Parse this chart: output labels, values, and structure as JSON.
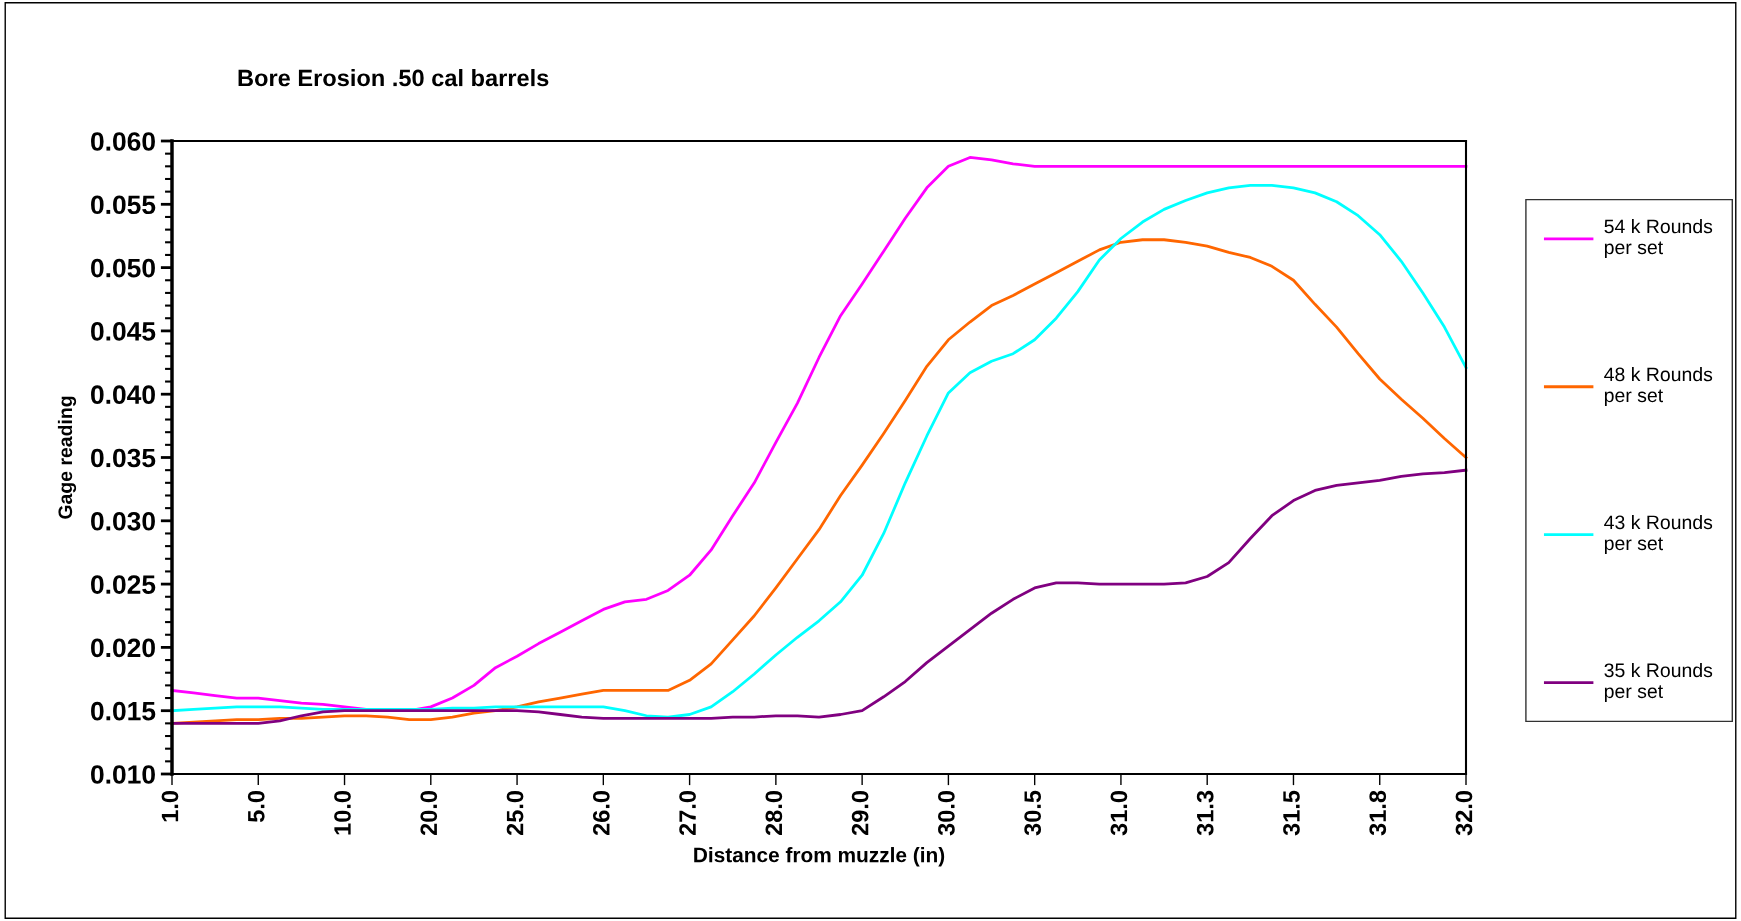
{
  "chart_data": {
    "type": "line",
    "title": "Bore Erosion .50 cal barrels",
    "xlabel": "Distance from muzzle (in)",
    "ylabel": "Gage reading",
    "categories": [
      "1.0",
      null,
      null,
      null,
      "5.0",
      null,
      null,
      null,
      "10.0",
      null,
      null,
      null,
      "20.0",
      null,
      null,
      null,
      "25.0",
      null,
      null,
      null,
      "26.0",
      null,
      null,
      null,
      "27.0",
      null,
      null,
      null,
      "28.0",
      null,
      null,
      null,
      "29.0",
      null,
      null,
      null,
      "30.0",
      null,
      null,
      null,
      "30.5",
      null,
      null,
      null,
      "31.0",
      null,
      null,
      null,
      "31.3",
      null,
      null,
      null,
      "31.5",
      null,
      null,
      null,
      "31.8",
      null,
      null,
      null,
      "32.0"
    ],
    "series": [
      {
        "name": "54 k Rounds\nper set",
        "color": "#ff00ff",
        "values": [
          0.0166,
          0.0164,
          0.0162,
          0.016,
          0.016,
          0.0158,
          0.0156,
          0.0155,
          0.0153,
          0.0151,
          0.015,
          0.015,
          0.0153,
          0.016,
          0.017,
          0.0184,
          0.0193,
          0.0203,
          0.0212,
          0.0221,
          0.023,
          0.0236,
          0.0238,
          0.0245,
          0.0257,
          0.0277,
          0.0304,
          0.033,
          0.0362,
          0.0393,
          0.0429,
          0.0462,
          0.0487,
          0.0513,
          0.0539,
          0.0563,
          0.058,
          0.0587,
          0.0585,
          0.0582,
          0.058,
          0.058,
          0.058,
          0.058,
          0.058,
          0.058,
          0.058,
          0.058,
          0.058,
          0.058,
          0.058,
          0.058,
          0.058,
          0.058,
          0.058,
          0.058,
          0.058,
          0.058,
          0.058,
          0.058,
          0.058
        ]
      },
      {
        "name": "48 k Rounds\nper set",
        "color": "#ff6600",
        "values": [
          0.014,
          0.0141,
          0.0142,
          0.0143,
          0.0143,
          0.0144,
          0.0144,
          0.0145,
          0.0146,
          0.0146,
          0.0145,
          0.0143,
          0.0143,
          0.0145,
          0.0148,
          0.015,
          0.0153,
          0.0157,
          0.016,
          0.0163,
          0.0166,
          0.0166,
          0.0166,
          0.0166,
          0.0174,
          0.0187,
          0.0206,
          0.0225,
          0.0247,
          0.027,
          0.0293,
          0.032,
          0.0344,
          0.0369,
          0.0395,
          0.0422,
          0.0443,
          0.0457,
          0.047,
          0.0478,
          0.0487,
          0.0496,
          0.0505,
          0.0514,
          0.052,
          0.0522,
          0.0522,
          0.052,
          0.0517,
          0.0512,
          0.0508,
          0.0501,
          0.049,
          0.0471,
          0.0453,
          0.0432,
          0.0412,
          0.0396,
          0.0381,
          0.0365,
          0.035
        ]
      },
      {
        "name": "43 k Rounds\nper set",
        "color": "#00ffff",
        "values": [
          0.015,
          0.0151,
          0.0152,
          0.0153,
          0.0153,
          0.0153,
          0.0152,
          0.0151,
          0.0151,
          0.0151,
          0.0151,
          0.0151,
          0.0151,
          0.0152,
          0.0152,
          0.0153,
          0.0153,
          0.0153,
          0.0153,
          0.0153,
          0.0153,
          0.015,
          0.0146,
          0.0145,
          0.0147,
          0.0153,
          0.0165,
          0.0179,
          0.0194,
          0.0208,
          0.0221,
          0.0236,
          0.0257,
          0.029,
          0.033,
          0.0367,
          0.0401,
          0.0417,
          0.0426,
          0.0432,
          0.0443,
          0.046,
          0.0481,
          0.0506,
          0.0523,
          0.0536,
          0.0546,
          0.0553,
          0.0559,
          0.0563,
          0.0565,
          0.0565,
          0.0563,
          0.0559,
          0.0552,
          0.0541,
          0.0526,
          0.0505,
          0.048,
          0.0453,
          0.0421
        ]
      },
      {
        "name": "35 k Rounds\nper set",
        "color": "#800080",
        "values": [
          0.014,
          0.014,
          0.014,
          0.014,
          0.014,
          0.0142,
          0.0146,
          0.0149,
          0.015,
          0.015,
          0.015,
          0.015,
          0.015,
          0.015,
          0.015,
          0.015,
          0.015,
          0.0149,
          0.0147,
          0.0145,
          0.0144,
          0.0144,
          0.0144,
          0.0144,
          0.0144,
          0.0144,
          0.0145,
          0.0145,
          0.0146,
          0.0146,
          0.0145,
          0.0147,
          0.015,
          0.0161,
          0.0173,
          0.0188,
          0.0201,
          0.0214,
          0.0227,
          0.0238,
          0.0247,
          0.0251,
          0.0251,
          0.025,
          0.025,
          0.025,
          0.025,
          0.0251,
          0.0256,
          0.0267,
          0.0286,
          0.0304,
          0.0316,
          0.0324,
          0.0328,
          0.033,
          0.0332,
          0.0335,
          0.0337,
          0.0338,
          0.034
        ]
      }
    ],
    "ylim": [
      0.01,
      0.06
    ],
    "yticks": [
      {
        "value": 0.01,
        "label": "0.010"
      },
      {
        "value": 0.015,
        "label": "0.015"
      },
      {
        "value": 0.02,
        "label": "0.020"
      },
      {
        "value": 0.025,
        "label": "0.025"
      },
      {
        "value": 0.03,
        "label": "0.030"
      },
      {
        "value": 0.035,
        "label": "0.035"
      },
      {
        "value": 0.04,
        "label": "0.040"
      },
      {
        "value": 0.045,
        "label": "0.045"
      },
      {
        "value": 0.05,
        "label": "0.050"
      },
      {
        "value": 0.055,
        "label": "0.055"
      },
      {
        "value": 0.06,
        "label": "0.060"
      }
    ],
    "grid": false,
    "legend": "right",
    "marker": "none",
    "line_style": "solid"
  }
}
